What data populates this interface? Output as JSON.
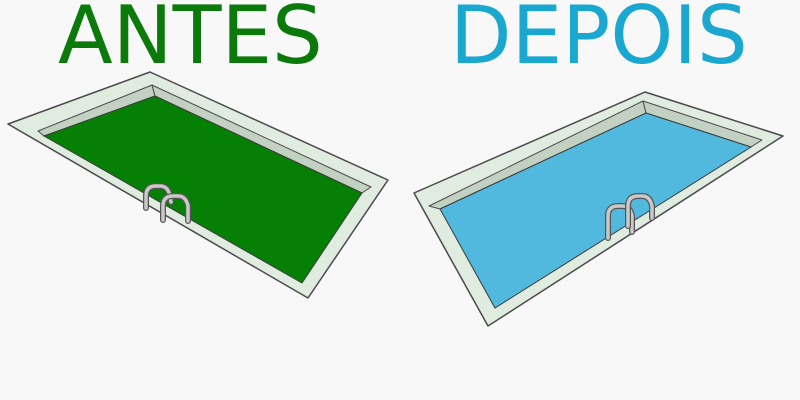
{
  "before": {
    "label": "ANTES",
    "water_color": "#058005",
    "label_color": "#0b7a0b",
    "icon": "swimming-pool-dirty"
  },
  "after": {
    "label": "DEPOIS",
    "water_color": "#52b9de",
    "label_color": "#1aa7d0",
    "icon": "swimming-pool-clean"
  }
}
